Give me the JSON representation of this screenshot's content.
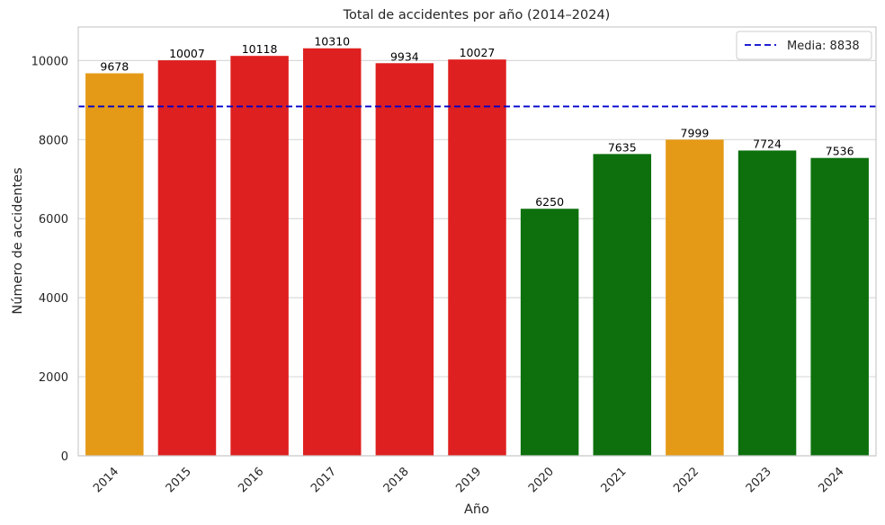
{
  "chart_data": {
    "type": "bar",
    "title": "Total de accidentes por año (2014–2024)",
    "xlabel": "Año",
    "ylabel": "Número de accidentes",
    "categories": [
      "2014",
      "2015",
      "2016",
      "2017",
      "2018",
      "2019",
      "2020",
      "2021",
      "2022",
      "2023",
      "2024"
    ],
    "values": [
      9678,
      10007,
      10118,
      10310,
      9934,
      10027,
      6250,
      7635,
      7999,
      7724,
      7536
    ],
    "data_labels": [
      "9678",
      "10007",
      "10118",
      "10310",
      "9934",
      "10027",
      "6250",
      "7635",
      "7999",
      "7724",
      "7536"
    ],
    "bar_colors": [
      "#e59a17",
      "#df2020",
      "#df2020",
      "#df2020",
      "#df2020",
      "#df2020",
      "#0d700d",
      "#0d700d",
      "#e59a17",
      "#0d700d",
      "#0d700d"
    ],
    "ylim": [
      0,
      10850
    ],
    "yticks": [
      0,
      2000,
      4000,
      6000,
      8000,
      10000
    ],
    "ytick_labels": [
      "0",
      "2000",
      "4000",
      "6000",
      "8000",
      "10000"
    ],
    "grid": "horizontal",
    "mean_line": {
      "value": 8838,
      "color": "#0000cc",
      "style": "dashed"
    },
    "legend": {
      "position": "top-right",
      "label": "Media: 8838"
    }
  }
}
